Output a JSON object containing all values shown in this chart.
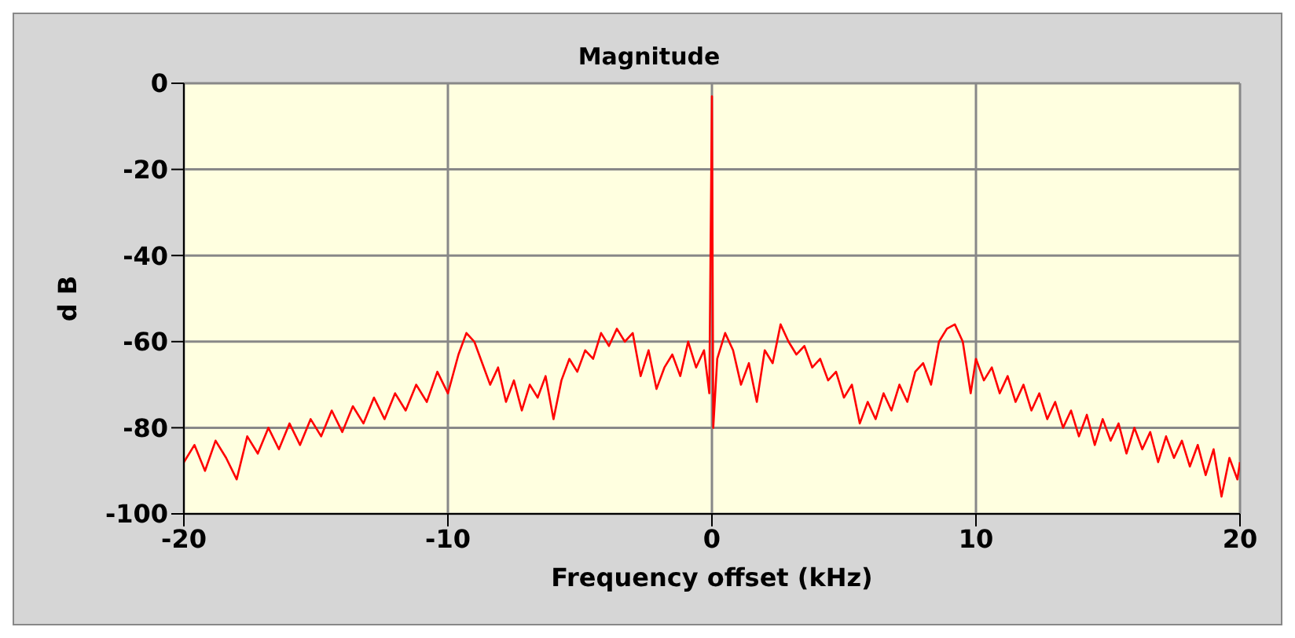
{
  "chart_data": {
    "type": "line",
    "title": "Magnitude",
    "xlabel": "Frequency offset (kHz)",
    "ylabel": "d B",
    "x": [
      -20,
      -19.6,
      -19.2,
      -18.8,
      -18.4,
      -18,
      -17.6,
      -17.2,
      -16.8,
      -16.4,
      -16,
      -15.6,
      -15.2,
      -14.8,
      -14.4,
      -14,
      -13.6,
      -13.2,
      -12.8,
      -12.4,
      -12,
      -11.6,
      -11.2,
      -10.8,
      -10.4,
      -10,
      -9.6,
      -9.3,
      -9,
      -8.7,
      -8.4,
      -8.1,
      -7.8,
      -7.5,
      -7.2,
      -6.9,
      -6.6,
      -6.3,
      -6,
      -5.7,
      -5.4,
      -5.1,
      -4.8,
      -4.5,
      -4.2,
      -3.9,
      -3.6,
      -3.3,
      -3,
      -2.7,
      -2.4,
      -2.1,
      -1.8,
      -1.5,
      -1.2,
      -0.9,
      -0.6,
      -0.3,
      -0.1,
      0,
      0.05,
      0.2,
      0.5,
      0.8,
      1.1,
      1.4,
      1.7,
      2,
      2.3,
      2.6,
      2.9,
      3.2,
      3.5,
      3.8,
      4.1,
      4.4,
      4.7,
      5,
      5.3,
      5.6,
      5.9,
      6.2,
      6.5,
      6.8,
      7.1,
      7.4,
      7.7,
      8,
      8.3,
      8.6,
      8.9,
      9.2,
      9.5,
      9.8,
      10,
      10.3,
      10.6,
      10.9,
      11.2,
      11.5,
      11.8,
      12.1,
      12.4,
      12.7,
      13,
      13.3,
      13.6,
      13.9,
      14.2,
      14.5,
      14.8,
      15.1,
      15.4,
      15.7,
      16,
      16.3,
      16.6,
      16.9,
      17.2,
      17.5,
      17.8,
      18.1,
      18.4,
      18.7,
      19,
      19.3,
      19.6,
      19.9,
      20
    ],
    "series": [
      {
        "color": "#ff0000",
        "values": [
          -88,
          -84,
          -90,
          -83,
          -87,
          -92,
          -82,
          -86,
          -80,
          -85,
          -79,
          -84,
          -78,
          -82,
          -76,
          -81,
          -75,
          -79,
          -73,
          -78,
          -72,
          -76,
          -70,
          -74,
          -67,
          -72,
          -63,
          -58,
          -60,
          -65,
          -70,
          -66,
          -74,
          -69,
          -76,
          -70,
          -73,
          -68,
          -78,
          -69,
          -64,
          -67,
          -62,
          -64,
          -58,
          -61,
          -57,
          -60,
          -58,
          -68,
          -62,
          -71,
          -66,
          -63,
          -68,
          -60,
          -66,
          -62,
          -72,
          -3,
          -80,
          -64,
          -58,
          -62,
          -70,
          -65,
          -74,
          -62,
          -65,
          -56,
          -60,
          -63,
          -61,
          -66,
          -64,
          -69,
          -67,
          -73,
          -70,
          -79,
          -74,
          -78,
          -72,
          -76,
          -70,
          -74,
          -67,
          -65,
          -70,
          -60,
          -57,
          -56,
          -60,
          -72,
          -64,
          -69,
          -66,
          -72,
          -68,
          -74,
          -70,
          -76,
          -72,
          -78,
          -74,
          -80,
          -76,
          -82,
          -77,
          -84,
          -78,
          -83,
          -79,
          -86,
          -80,
          -85,
          -81,
          -88,
          -82,
          -87,
          -83,
          -89,
          -84,
          -91,
          -85,
          -96,
          -87,
          -92,
          -88
        ]
      }
    ],
    "xlim": [
      -20,
      20
    ],
    "xticks": [
      -20,
      -10,
      0,
      10,
      20
    ],
    "ylim": [
      -100,
      0
    ],
    "yticks": [
      -100,
      -80,
      -60,
      -40,
      -20,
      0
    ],
    "grid": true,
    "marker": "none",
    "line_style": "solid"
  }
}
